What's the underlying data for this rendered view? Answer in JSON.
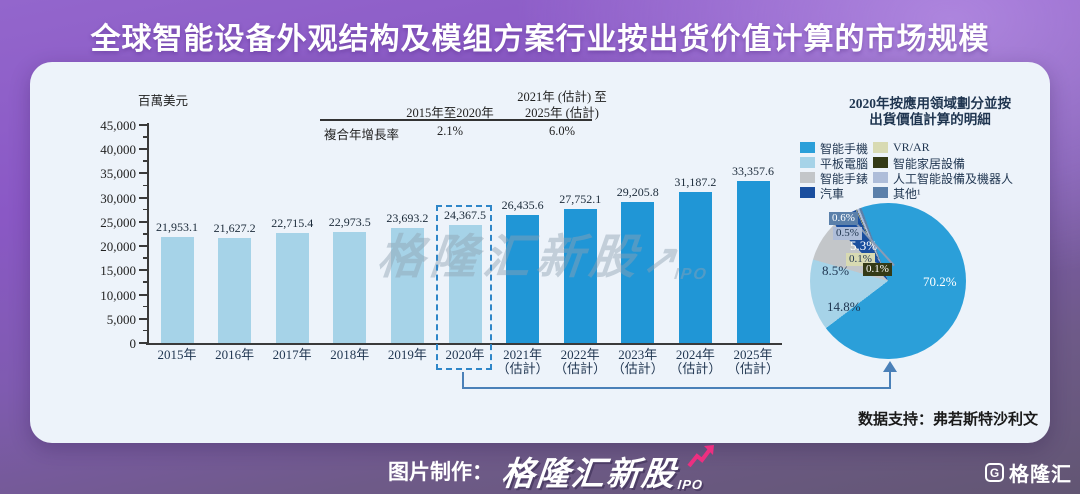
{
  "title": "全球智能设备外观结构及模组方案行业按出货价值计算的市场规模",
  "chart_data": [
    {
      "type": "bar",
      "title": "全球智能设备外观结构及模组方案行业按出货价值计算的市场规模",
      "ylabel": "百萬美元",
      "categories": [
        "2015年",
        "2016年",
        "2017年",
        "2018年",
        "2019年",
        "2020年",
        "2021年",
        "2022年",
        "2023年",
        "2024年",
        "2025年"
      ],
      "estimate_suffix": "（估計）",
      "estimate_start_index": 6,
      "values": [
        21953.1,
        21627.2,
        22715.4,
        22973.5,
        23693.2,
        24367.5,
        26435.6,
        27752.1,
        29205.8,
        31187.2,
        33357.6
      ],
      "value_labels": [
        "21,953.1",
        "21,627.2",
        "22,715.4",
        "22,973.5",
        "23,693.2",
        "24,367.5",
        "26,435.6",
        "27,752.1",
        "29,205.8",
        "31,187.2",
        "33,357.6"
      ],
      "ylim": [
        0,
        45000
      ],
      "ytick_labels": [
        "45,000",
        "40,000",
        "35,000",
        "30,000",
        "25,000",
        "20,000",
        "15,000",
        "10,000",
        "5,000",
        "0"
      ],
      "grid": "off",
      "highlight_index": 5,
      "colors": {
        "historical": "#a6d3e8",
        "estimate": "#2096d6"
      }
    },
    {
      "type": "pie",
      "title": "2020年按應用領域劃分並按出貨價值計算的明細",
      "title_line1": "2020年按應用領域劃分並按",
      "title_line2": "出貨價值計算的明細",
      "start_angle_deg": -20,
      "slices": [
        {
          "label": "智能手機",
          "pct": 70.2,
          "pct_label": "70.2%",
          "color": "#2b9fd9"
        },
        {
          "label": "平板電腦",
          "pct": 14.8,
          "pct_label": "14.8%",
          "color": "#a6d3e8"
        },
        {
          "label": "智能手錶",
          "pct": 8.5,
          "pct_label": "8.5%",
          "color": "#c3c6c9"
        },
        {
          "label": "汽車",
          "pct": 5.3,
          "pct_label": "5.3%",
          "color": "#1a4e9e"
        },
        {
          "label": "VR/AR",
          "pct": 0.1,
          "pct_label": "0.1%",
          "color": "#d8dab2"
        },
        {
          "label": "智能家居設備",
          "pct": 0.1,
          "pct_label": "0.1%",
          "color": "#343a16"
        },
        {
          "label": "人工智能設備及機器人",
          "pct": 0.5,
          "pct_label": "0.5%",
          "color": "#aebdd9"
        },
        {
          "label": "其他¹",
          "pct": 0.6,
          "pct_label": "0.6%",
          "color": "#5b80aa"
        }
      ]
    }
  ],
  "cagr_table": {
    "row_label": "複合年增長率",
    "col1_header": "2015年至2020年",
    "col1_value": "2.1%",
    "col2_header_line1": "2021年 (估計) 至",
    "col2_header_line2": "2025年 (估計)",
    "col2_value": "6.0%"
  },
  "annotations": {
    "watermark_text": "格隆汇新股",
    "watermark_arrow": "↗",
    "watermark_sub": "IPO",
    "data_support": "数据支持：弗若斯特沙利文"
  },
  "footer": {
    "credit_label": "图片制作：",
    "brand_text": "格隆汇新股",
    "brand_sub": "IPO",
    "corner_letter": "G",
    "corner_brand": "格隆汇"
  }
}
